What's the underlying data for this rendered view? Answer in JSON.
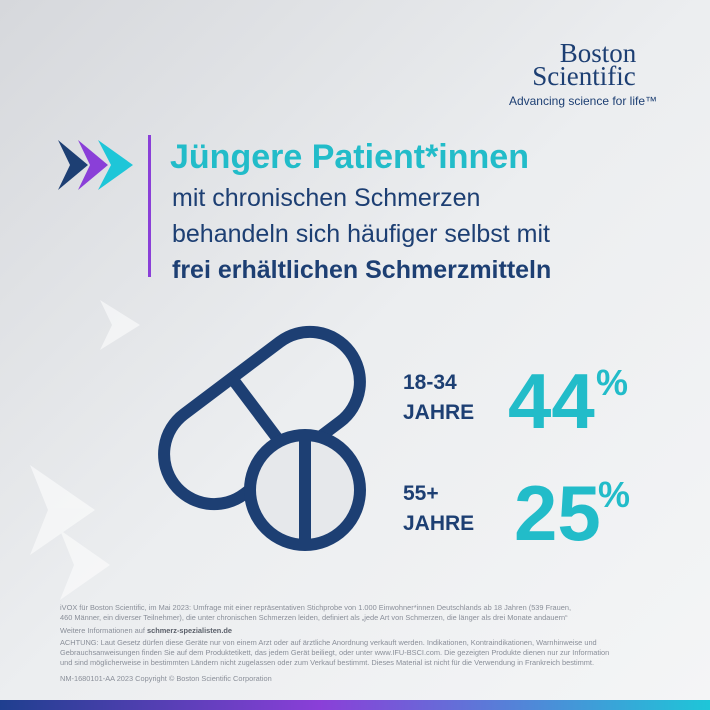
{
  "logo": {
    "line1": "Boston",
    "line2": "Scientific",
    "tagline": "Advancing science for life™"
  },
  "headline": {
    "title": "Jüngere Patient*innen",
    "line1": "mit chronischen Schmerzen",
    "line2": "behandeln sich häufiger selbst mit",
    "line3": "frei erhältlichen Schmerzmitteln"
  },
  "stats": [
    {
      "age": "18-34",
      "label": "JAHRE",
      "value": "44",
      "unit": "%"
    },
    {
      "age": "55+",
      "label": "JAHRE",
      "value": "25",
      "unit": "%"
    }
  ],
  "footnote": {
    "source1": "iVOX für Boston Scientific, im Mai 2023: Umfrage mit einer repräsentativen Stichprobe von 1.000 Einwohner*innen Deutschlands ab 18 Jahren (539 Frauen,",
    "source2": "460 Männer, ein diverser Teilnehmer), die unter chronischen Schmerzen leiden, definiert als „jede Art von Schmerzen, die länger als drei Monate andauern“",
    "more_prefix": "Weitere Informationen auf",
    "more_link": "schmerz-spezialisten.de",
    "warning1": "ACHTUNG: Laut Gesetz dürfen diese Geräte nur von einem Arzt oder auf ärztliche Anordnung verkauft werden. Indikationen, Kontraindikationen, Warnhinweise und",
    "warning2": "Gebrauchsanweisungen finden Sie auf dem Produktetikett, das jedem Gerät beiliegt, oder unter www.IFU-BSCI.com. Die gezeigten Produkte dienen nur zur Information",
    "warning3": "und sind möglicherweise in bestimmten Ländern nicht zugelassen oder zum Verkauf bestimmt. Dieses Material ist nicht für die Verwendung in Frankreich bestimmt.",
    "copyright": "NM-1680101-AA 2023  Copyright © Boston Scientific Corporation"
  }
}
